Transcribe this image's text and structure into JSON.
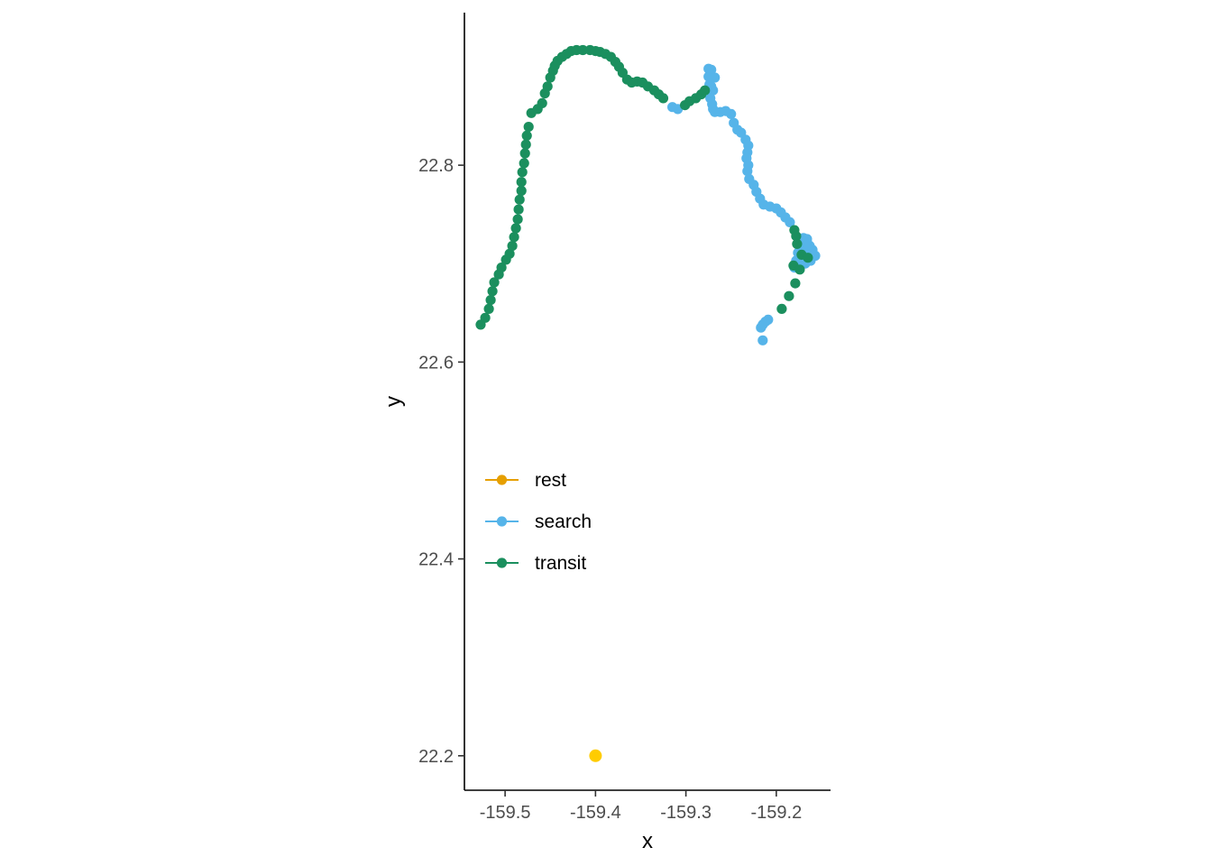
{
  "chart_data": {
    "type": "scatter",
    "xlabel": "x",
    "ylabel": "y",
    "xlim": [
      -159.545,
      -159.14
    ],
    "ylim": [
      22.165,
      22.955
    ],
    "x_ticks": [
      -159.5,
      -159.4,
      -159.3,
      -159.2
    ],
    "x_tick_labels": [
      "-159.5",
      "-159.4",
      "-159.3",
      "-159.2"
    ],
    "y_ticks": [
      22.2,
      22.4,
      22.6,
      22.8
    ],
    "y_tick_labels": [
      "22.2",
      "22.4",
      "22.6",
      "22.8"
    ],
    "grid": false,
    "legend_position": "inside-left",
    "series": [
      {
        "name": "rest",
        "color": "#e69f00",
        "points": []
      },
      {
        "name": "search",
        "color": "#56b4e9",
        "points": [
          [
            -159.315,
            22.859
          ],
          [
            -159.309,
            22.857
          ],
          [
            -159.275,
            22.898
          ],
          [
            -159.272,
            22.897
          ],
          [
            -159.275,
            22.89
          ],
          [
            -159.274,
            22.882
          ],
          [
            -159.276,
            22.876
          ],
          [
            -159.272,
            22.88
          ],
          [
            -159.268,
            22.889
          ],
          [
            -159.27,
            22.876
          ],
          [
            -159.273,
            22.868
          ],
          [
            -159.271,
            22.862
          ],
          [
            -159.27,
            22.857
          ],
          [
            -159.268,
            22.854
          ],
          [
            -159.262,
            22.854
          ],
          [
            -159.256,
            22.855
          ],
          [
            -159.25,
            22.852
          ],
          [
            -159.247,
            22.843
          ],
          [
            -159.243,
            22.836
          ],
          [
            -159.239,
            22.833
          ],
          [
            -159.234,
            22.826
          ],
          [
            -159.231,
            22.82
          ],
          [
            -159.232,
            22.813
          ],
          [
            -159.233,
            22.807
          ],
          [
            -159.231,
            22.8
          ],
          [
            -159.232,
            22.794
          ],
          [
            -159.23,
            22.786
          ],
          [
            -159.225,
            22.78
          ],
          [
            -159.222,
            22.773
          ],
          [
            -159.218,
            22.766
          ],
          [
            -159.214,
            22.76
          ],
          [
            -159.207,
            22.758
          ],
          [
            -159.2,
            22.756
          ],
          [
            -159.195,
            22.752
          ],
          [
            -159.19,
            22.747
          ],
          [
            -159.185,
            22.742
          ],
          [
            -159.17,
            22.726
          ],
          [
            -159.166,
            22.722
          ],
          [
            -159.163,
            22.718
          ],
          [
            -159.165,
            22.711
          ],
          [
            -159.16,
            22.714
          ],
          [
            -159.157,
            22.708
          ],
          [
            -159.162,
            22.703
          ],
          [
            -159.168,
            22.7
          ],
          [
            -159.173,
            22.704
          ],
          [
            -159.176,
            22.711
          ],
          [
            -159.178,
            22.703
          ],
          [
            -159.18,
            22.696
          ],
          [
            -159.172,
            22.722
          ],
          [
            -159.166,
            22.725
          ],
          [
            -159.168,
            22.716
          ],
          [
            -159.209,
            22.643
          ],
          [
            -159.212,
            22.641
          ],
          [
            -159.215,
            22.638
          ],
          [
            -159.217,
            22.635
          ],
          [
            -159.215,
            22.622
          ]
        ]
      },
      {
        "name": "transit",
        "color": "#1b8f5e",
        "points": [
          [
            -159.527,
            22.638
          ],
          [
            -159.522,
            22.645
          ],
          [
            -159.518,
            22.654
          ],
          [
            -159.516,
            22.663
          ],
          [
            -159.514,
            22.672
          ],
          [
            -159.512,
            22.681
          ],
          [
            -159.507,
            22.689
          ],
          [
            -159.504,
            22.696
          ],
          [
            -159.499,
            22.704
          ],
          [
            -159.495,
            22.71
          ],
          [
            -159.492,
            22.718
          ],
          [
            -159.49,
            22.727
          ],
          [
            -159.488,
            22.736
          ],
          [
            -159.486,
            22.745
          ],
          [
            -159.485,
            22.755
          ],
          [
            -159.484,
            22.765
          ],
          [
            -159.482,
            22.774
          ],
          [
            -159.482,
            22.783
          ],
          [
            -159.481,
            22.793
          ],
          [
            -159.479,
            22.802
          ],
          [
            -159.478,
            22.812
          ],
          [
            -159.477,
            22.821
          ],
          [
            -159.476,
            22.83
          ],
          [
            -159.474,
            22.839
          ],
          [
            -159.471,
            22.853
          ],
          [
            -159.464,
            22.857
          ],
          [
            -159.459,
            22.863
          ],
          [
            -159.456,
            22.873
          ],
          [
            -159.453,
            22.88
          ],
          [
            -159.45,
            22.889
          ],
          [
            -159.447,
            22.896
          ],
          [
            -159.445,
            22.901
          ],
          [
            -159.442,
            22.906
          ],
          [
            -159.437,
            22.91
          ],
          [
            -159.432,
            22.913
          ],
          [
            -159.427,
            22.916
          ],
          [
            -159.421,
            22.917
          ],
          [
            -159.414,
            22.917
          ],
          [
            -159.406,
            22.917
          ],
          [
            -159.4,
            22.916
          ],
          [
            -159.395,
            22.915
          ],
          [
            -159.389,
            22.913
          ],
          [
            -159.383,
            22.91
          ],
          [
            -159.378,
            22.905
          ],
          [
            -159.374,
            22.9
          ],
          [
            -159.37,
            22.894
          ],
          [
            -159.365,
            22.887
          ],
          [
            -159.36,
            22.884
          ],
          [
            -159.354,
            22.885
          ],
          [
            -159.348,
            22.884
          ],
          [
            -159.342,
            22.88
          ],
          [
            -159.335,
            22.876
          ],
          [
            -159.33,
            22.872
          ],
          [
            -159.325,
            22.868
          ],
          [
            -159.301,
            22.861
          ],
          [
            -159.296,
            22.865
          ],
          [
            -159.289,
            22.868
          ],
          [
            -159.283,
            22.872
          ],
          [
            -159.279,
            22.876
          ],
          [
            -159.18,
            22.734
          ],
          [
            -159.178,
            22.728
          ],
          [
            -159.177,
            22.72
          ],
          [
            -159.172,
            22.709
          ],
          [
            -159.165,
            22.706
          ],
          [
            -159.179,
            22.68
          ],
          [
            -159.186,
            22.667
          ],
          [
            -159.194,
            22.654
          ],
          [
            -159.181,
            22.698
          ],
          [
            -159.174,
            22.694
          ]
        ]
      }
    ],
    "annotations": [
      {
        "x": -159.4,
        "y": 22.2,
        "color": "#ffcc00"
      }
    ]
  }
}
